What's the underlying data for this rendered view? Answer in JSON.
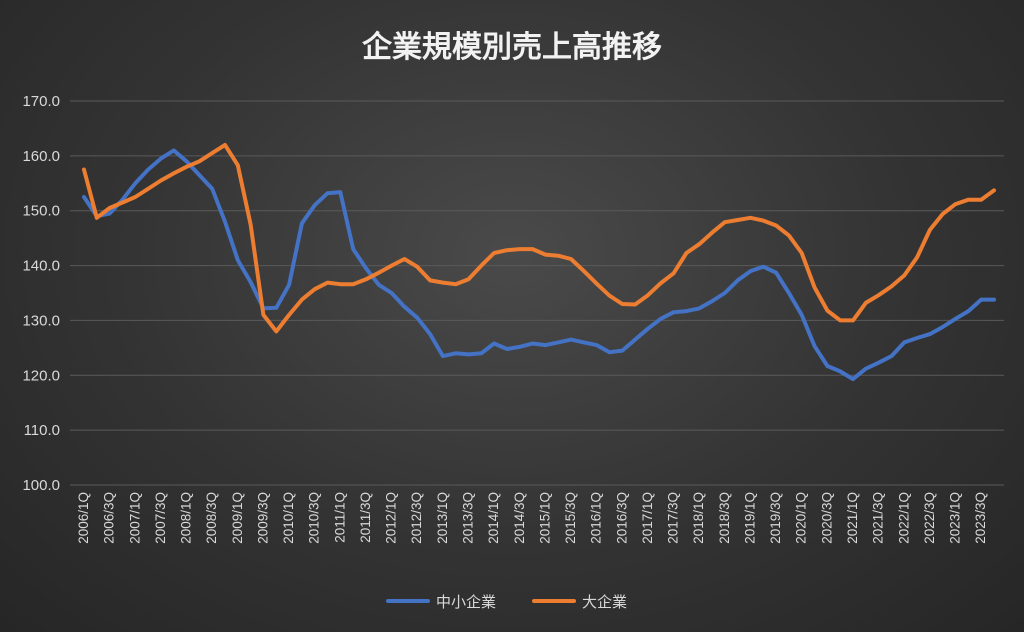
{
  "chart_data": {
    "type": "line",
    "title": "企業規模別売上高推移",
    "ylim": [
      100,
      170
    ],
    "yticks": [
      "100.0",
      "110.0",
      "120.0",
      "130.0",
      "140.0",
      "150.0",
      "160.0",
      "170.0"
    ],
    "grid": true,
    "legend_position": "bottom",
    "categories": [
      "2006/1Q",
      "2006/2Q",
      "2006/3Q",
      "2006/4Q",
      "2007/1Q",
      "2007/2Q",
      "2007/3Q",
      "2007/4Q",
      "2008/1Q",
      "2008/2Q",
      "2008/3Q",
      "2008/4Q",
      "2009/1Q",
      "2009/2Q",
      "2009/3Q",
      "2009/4Q",
      "2010/1Q",
      "2010/2Q",
      "2010/3Q",
      "2010/4Q",
      "2011/1Q",
      "2011/2Q",
      "2011/3Q",
      "2011/4Q",
      "2012/1Q",
      "2012/2Q",
      "2012/3Q",
      "2012/4Q",
      "2013/1Q",
      "2013/2Q",
      "2013/3Q",
      "2013/4Q",
      "2014/1Q",
      "2014/2Q",
      "2014/3Q",
      "2014/4Q",
      "2015/1Q",
      "2015/2Q",
      "2015/3Q",
      "2015/4Q",
      "2016/1Q",
      "2016/2Q",
      "2016/3Q",
      "2016/4Q",
      "2017/1Q",
      "2017/2Q",
      "2017/3Q",
      "2017/4Q",
      "2018/1Q",
      "2018/2Q",
      "2018/3Q",
      "2018/4Q",
      "2019/1Q",
      "2019/2Q",
      "2019/3Q",
      "2019/4Q",
      "2020/1Q",
      "2020/2Q",
      "2020/3Q",
      "2020/4Q",
      "2021/1Q",
      "2021/2Q",
      "2021/3Q",
      "2021/4Q",
      "2022/1Q",
      "2022/2Q",
      "2022/3Q",
      "2022/4Q",
      "2023/1Q",
      "2023/2Q",
      "2023/3Q",
      "2023/4Q"
    ],
    "series": [
      {
        "name": "中小企業",
        "color": "#4472c4",
        "values": [
          152.5,
          149.0,
          149.5,
          152.0,
          155.0,
          157.5,
          159.5,
          161.0,
          159.0,
          156.5,
          154.0,
          148.0,
          141.0,
          137.0,
          132.2,
          132.3,
          136.5,
          147.7,
          151.0,
          153.2,
          153.4,
          143.0,
          139.5,
          136.5,
          135.0,
          132.5,
          130.5,
          127.5,
          123.5,
          124.0,
          123.8,
          124.0,
          125.8,
          124.8,
          125.2,
          125.8,
          125.5,
          126.0,
          126.5,
          126.0,
          125.5,
          124.2,
          124.5,
          126.5,
          128.5,
          130.3,
          131.5,
          131.7,
          132.2,
          133.5,
          135.0,
          137.3,
          139.0,
          139.8,
          138.7,
          135.0,
          131.0,
          125.3,
          121.7,
          120.7,
          119.3,
          121.2,
          122.3,
          123.5,
          126.0,
          126.8,
          127.5,
          128.8,
          130.3,
          131.7,
          133.8,
          133.8
        ]
      },
      {
        "name": "大企業",
        "color": "#ed7d31",
        "values": [
          157.5,
          148.7,
          150.5,
          151.5,
          152.5,
          154.0,
          155.5,
          156.8,
          158.0,
          159.0,
          160.5,
          162.0,
          158.3,
          147.5,
          131.0,
          128.0,
          131.0,
          133.8,
          135.7,
          136.9,
          136.6,
          136.6,
          137.5,
          138.7,
          140.0,
          141.2,
          139.8,
          137.3,
          136.9,
          136.6,
          137.5,
          140.0,
          142.3,
          142.8,
          143.0,
          143.0,
          142.0,
          141.8,
          141.2,
          139.0,
          136.7,
          134.5,
          133.0,
          132.9,
          134.6,
          136.8,
          138.6,
          142.3,
          143.9,
          146.0,
          147.9,
          148.3,
          148.7,
          148.2,
          147.3,
          145.5,
          142.3,
          136.0,
          131.8,
          130.0,
          130.0,
          133.2,
          134.6,
          136.2,
          138.2,
          141.5,
          146.5,
          149.4,
          151.2,
          152.0,
          152.0,
          153.7
        ]
      }
    ]
  }
}
